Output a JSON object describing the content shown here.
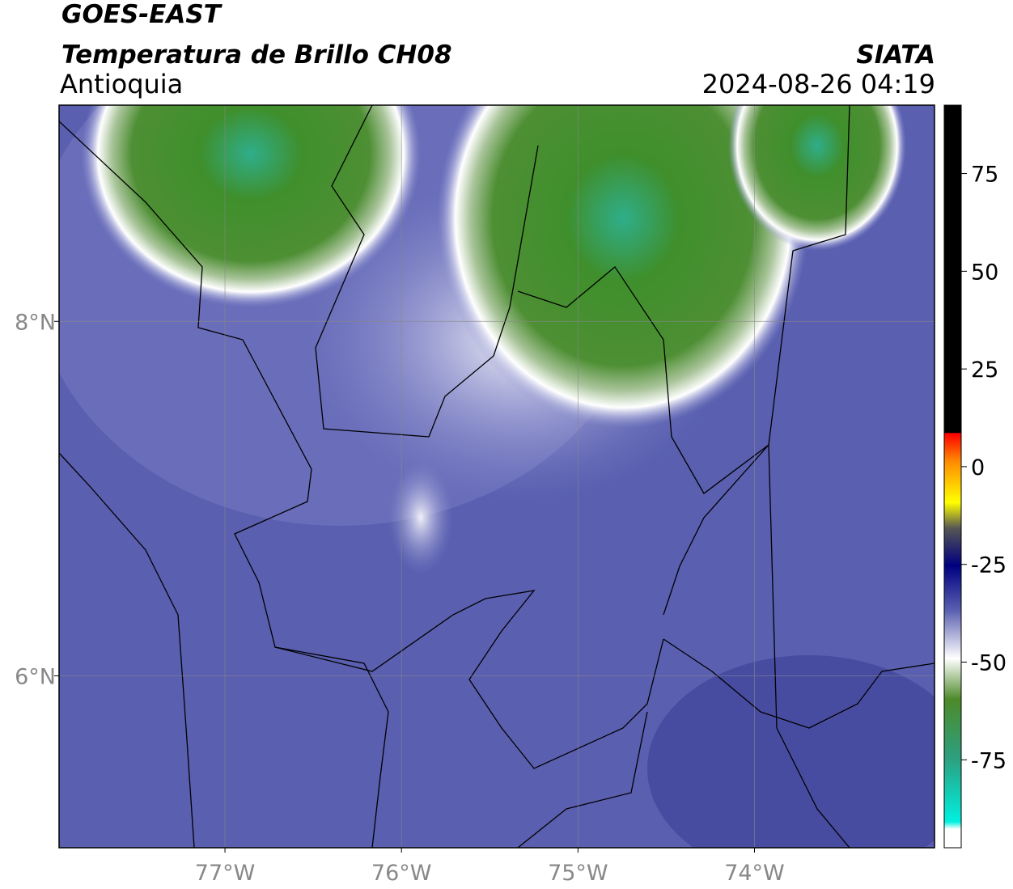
{
  "header": {
    "title": "GOES-EAST",
    "subtitle": "Temperatura de Brillo CH08",
    "region": "Antioquia",
    "source": "SIATA",
    "datetime": "2024-08-26 04:19"
  },
  "map": {
    "xlim": [
      -77.94,
      -72.98
    ],
    "ylim": [
      5.03,
      9.22
    ],
    "xticks": [
      {
        "value": -77,
        "label": "77°W"
      },
      {
        "value": -76,
        "label": "76°W"
      },
      {
        "value": -75,
        "label": "75°W"
      },
      {
        "value": -74,
        "label": "74°W"
      }
    ],
    "yticks": [
      {
        "value": 8,
        "label": "8°N"
      },
      {
        "value": 6,
        "label": "6°N"
      }
    ],
    "grid": true
  },
  "colorbar": {
    "lim": [
      -97.5,
      92.5
    ],
    "ticks": [
      75,
      50,
      25,
      0,
      -25,
      -50,
      -75
    ]
  }
}
